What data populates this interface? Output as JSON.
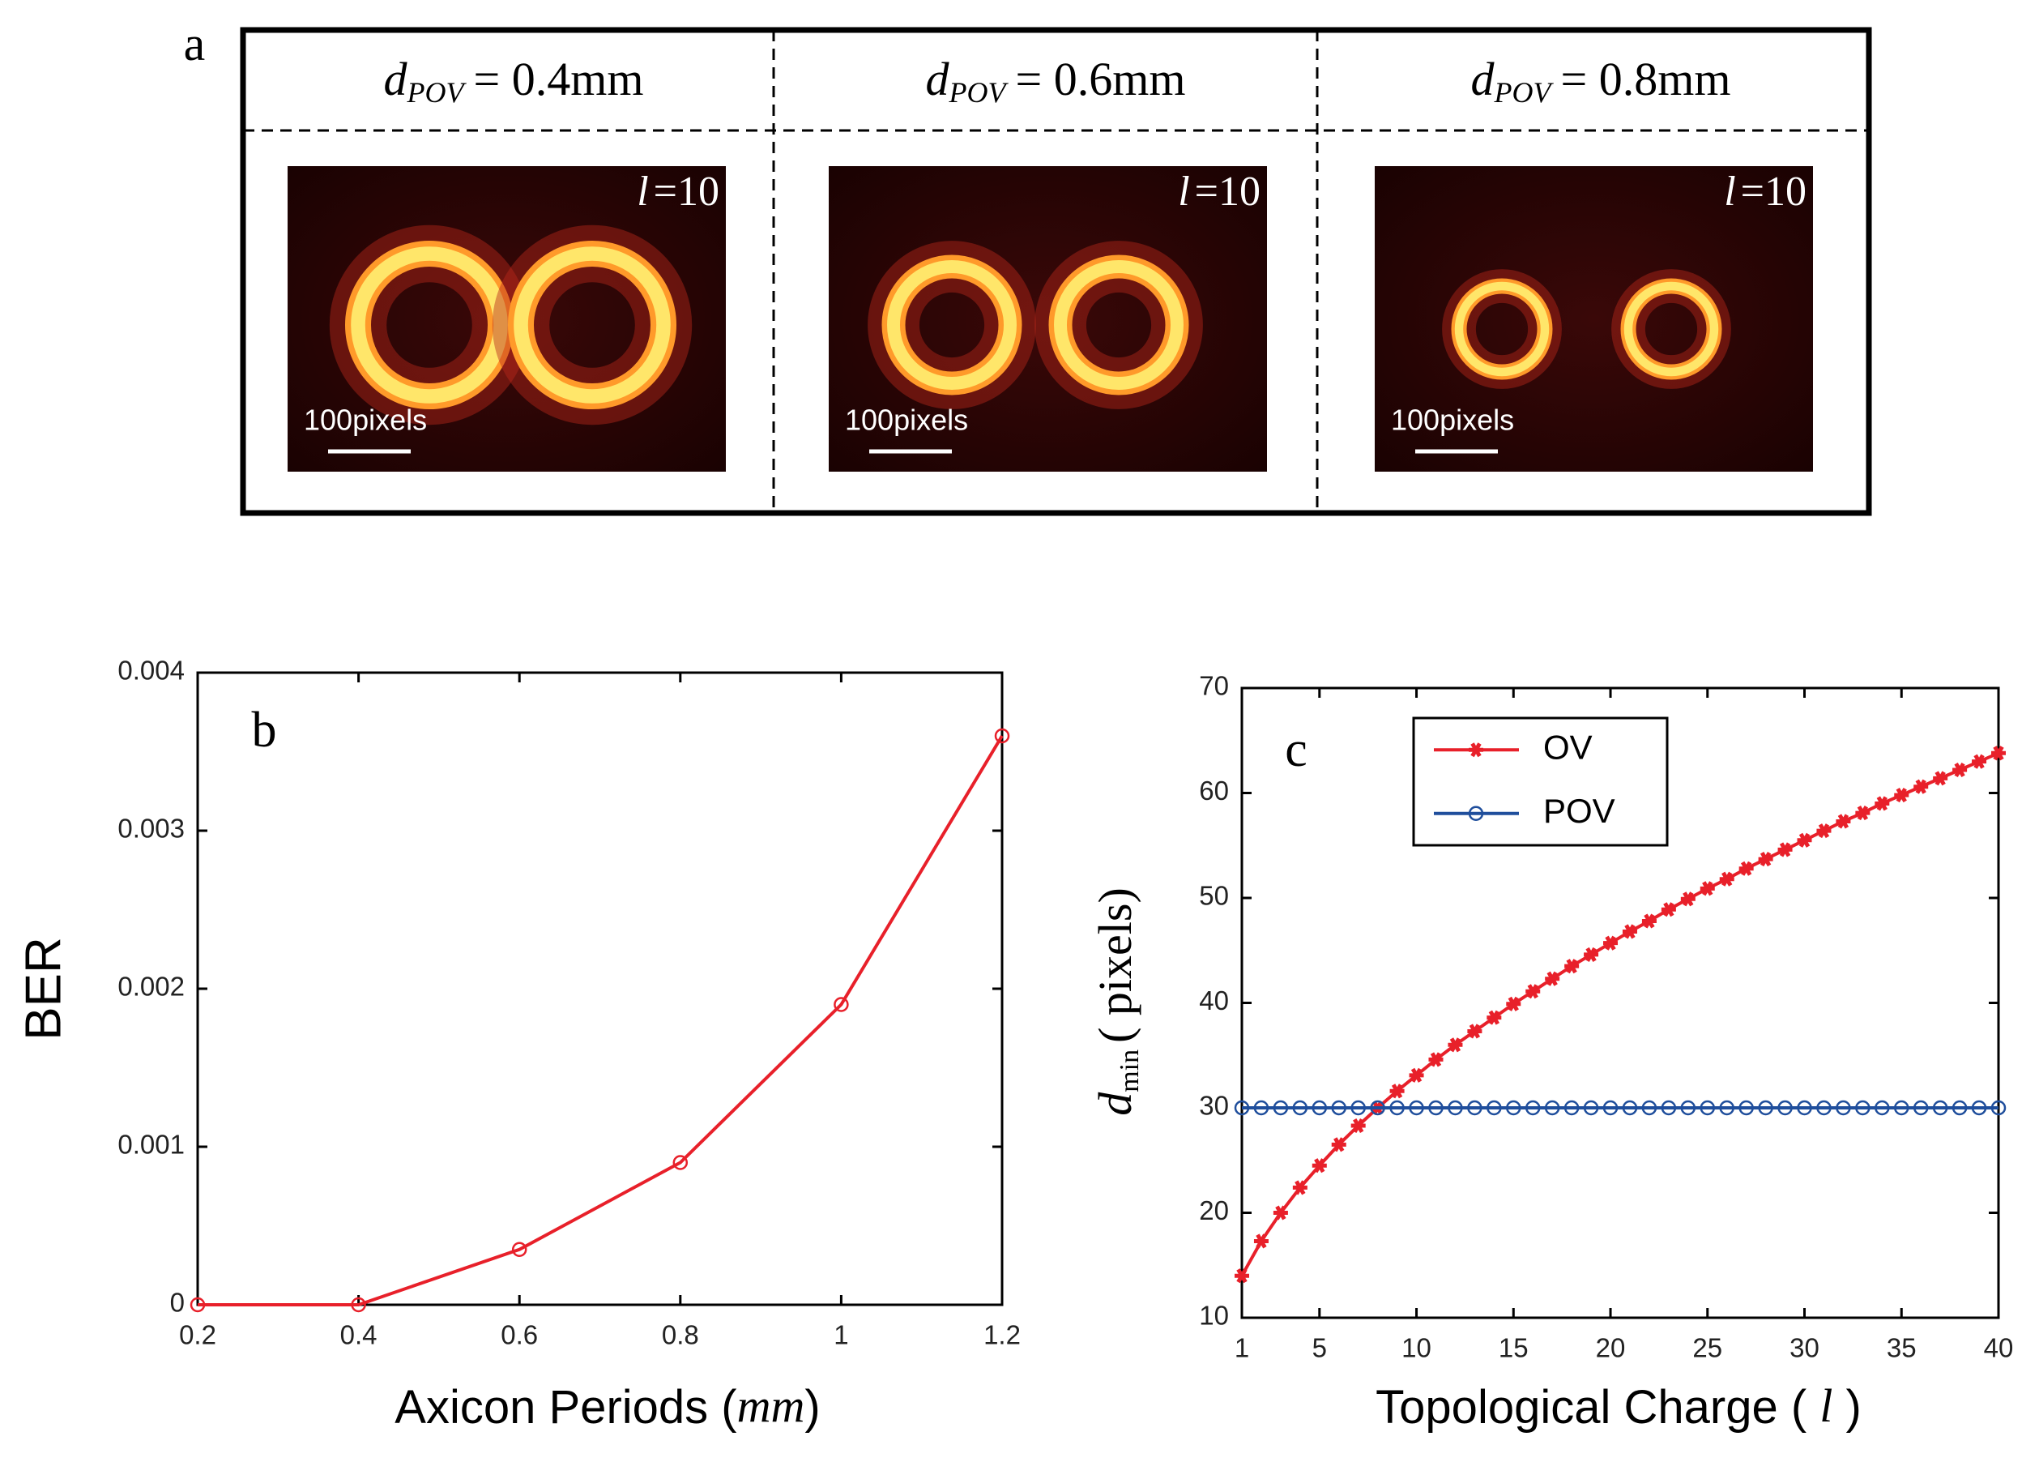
{
  "panel_a": {
    "label": "a",
    "columns": [
      {
        "symbol": "d",
        "subscript": "POV",
        "value": "= 0.4mm",
        "charge_symbol": "l",
        "charge_value": "=10",
        "scale_bar": "100pixels"
      },
      {
        "symbol": "d",
        "subscript": "POV",
        "value": "= 0.6mm",
        "charge_symbol": "l",
        "charge_value": "=10",
        "scale_bar": "100pixels"
      },
      {
        "symbol": "d",
        "subscript": "POV",
        "value": "= 0.8mm",
        "charge_symbol": "l",
        "charge_value": "=10",
        "scale_bar": "100pixels"
      }
    ]
  },
  "chart_data": [
    {
      "type": "line",
      "panel_label": "b",
      "ylabel": "BER",
      "xlabel": [
        "Axicon Periods (",
        "mm",
        ")"
      ],
      "x": [
        0.2,
        0.4,
        0.6,
        0.8,
        1,
        1.2
      ],
      "values": [
        0,
        0,
        0.00035,
        0.0009,
        0.0019,
        0.0036
      ],
      "color": "#e8202a",
      "marker": "circle",
      "xlim": [
        0.2,
        1.2
      ],
      "xticks": [
        0.2,
        0.4,
        0.6,
        0.8,
        1,
        1.2
      ],
      "ylim": [
        0,
        0.004
      ],
      "yticks": [
        0,
        0.001,
        0.002,
        0.003,
        0.004
      ]
    },
    {
      "type": "line",
      "panel_label": "c",
      "ylabel": [
        "d",
        "min",
        "( pixels)"
      ],
      "xlabel": [
        "Topological Charge ( ",
        "l",
        " )"
      ],
      "x": [
        1,
        2,
        3,
        4,
        5,
        6,
        7,
        8,
        9,
        10,
        11,
        12,
        13,
        14,
        15,
        16,
        17,
        18,
        19,
        20,
        21,
        22,
        23,
        24,
        25,
        26,
        27,
        28,
        29,
        30,
        31,
        32,
        33,
        34,
        35,
        36,
        37,
        38,
        39,
        40
      ],
      "series": [
        {
          "name": "OV",
          "color": "#e8202a",
          "marker": "asterisk",
          "values": [
            14,
            17.3,
            20,
            22.4,
            24.5,
            26.5,
            28.3,
            30,
            31.6,
            33.1,
            34.6,
            36,
            37.3,
            38.6,
            39.9,
            41.1,
            42.3,
            43.5,
            44.6,
            45.7,
            46.8,
            47.8,
            48.9,
            49.9,
            50.9,
            51.8,
            52.8,
            53.7,
            54.6,
            55.5,
            56.4,
            57.3,
            58.1,
            59,
            59.8,
            60.6,
            61.4,
            62.2,
            63,
            63.8
          ]
        },
        {
          "name": "POV",
          "color": "#1f4e9c",
          "marker": "circle",
          "values": [
            30,
            30,
            30,
            30,
            30,
            30,
            30,
            30,
            30,
            30,
            30,
            30,
            30,
            30,
            30,
            30,
            30,
            30,
            30,
            30,
            30,
            30,
            30,
            30,
            30,
            30,
            30,
            30,
            30,
            30,
            30,
            30,
            30,
            30,
            30,
            30,
            30,
            30,
            30,
            30
          ]
        }
      ],
      "legend": "upper left",
      "xlim": [
        1,
        40
      ],
      "xticks": [
        1,
        5,
        10,
        15,
        20,
        25,
        30,
        35,
        40
      ],
      "ylim": [
        10,
        70
      ],
      "yticks": [
        10,
        20,
        30,
        40,
        50,
        60,
        70
      ]
    }
  ]
}
